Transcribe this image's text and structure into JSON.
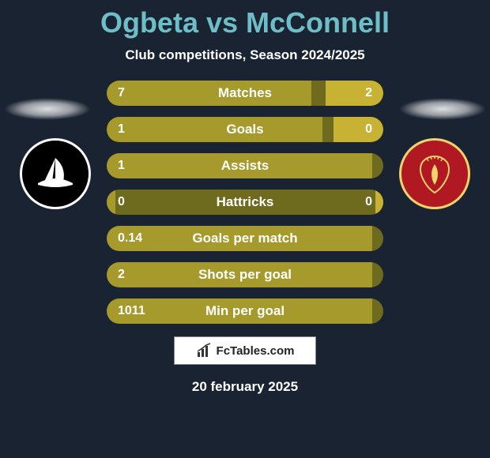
{
  "title": "Ogbeta vs McConnell",
  "subtitle": "Club competitions, Season 2024/2025",
  "date": "20 february 2025",
  "watermark": "FcTables.com",
  "colors": {
    "page_bg": "#1a2332",
    "title_color": "#6dbec7",
    "bar_bg": "#6e6b1f",
    "bar_left_fill": "#a59a2b",
    "bar_right_fill": "#c7b233",
    "crest_left_bg": "#000000",
    "crest_left_border": "#ffffff",
    "crest_right_bg": "#b01922",
    "crest_right_border": "#f5d36c"
  },
  "bars": [
    {
      "label": "Matches",
      "left_val": "7",
      "right_val": "2",
      "left_pct": 74,
      "right_pct": 21
    },
    {
      "label": "Goals",
      "left_val": "1",
      "right_val": "0",
      "left_pct": 78,
      "right_pct": 18
    },
    {
      "label": "Assists",
      "left_val": "1",
      "right_val": "",
      "left_pct": 96,
      "right_pct": 0
    },
    {
      "label": "Hattricks",
      "left_val": "0",
      "right_val": "0",
      "left_pct": 3,
      "right_pct": 3
    },
    {
      "label": "Goals per match",
      "left_val": "0.14",
      "right_val": "",
      "left_pct": 96,
      "right_pct": 0
    },
    {
      "label": "Shots per goal",
      "left_val": "2",
      "right_val": "",
      "left_pct": 96,
      "right_pct": 0
    },
    {
      "label": "Min per goal",
      "left_val": "1011",
      "right_val": "",
      "left_pct": 96,
      "right_pct": 0
    }
  ]
}
